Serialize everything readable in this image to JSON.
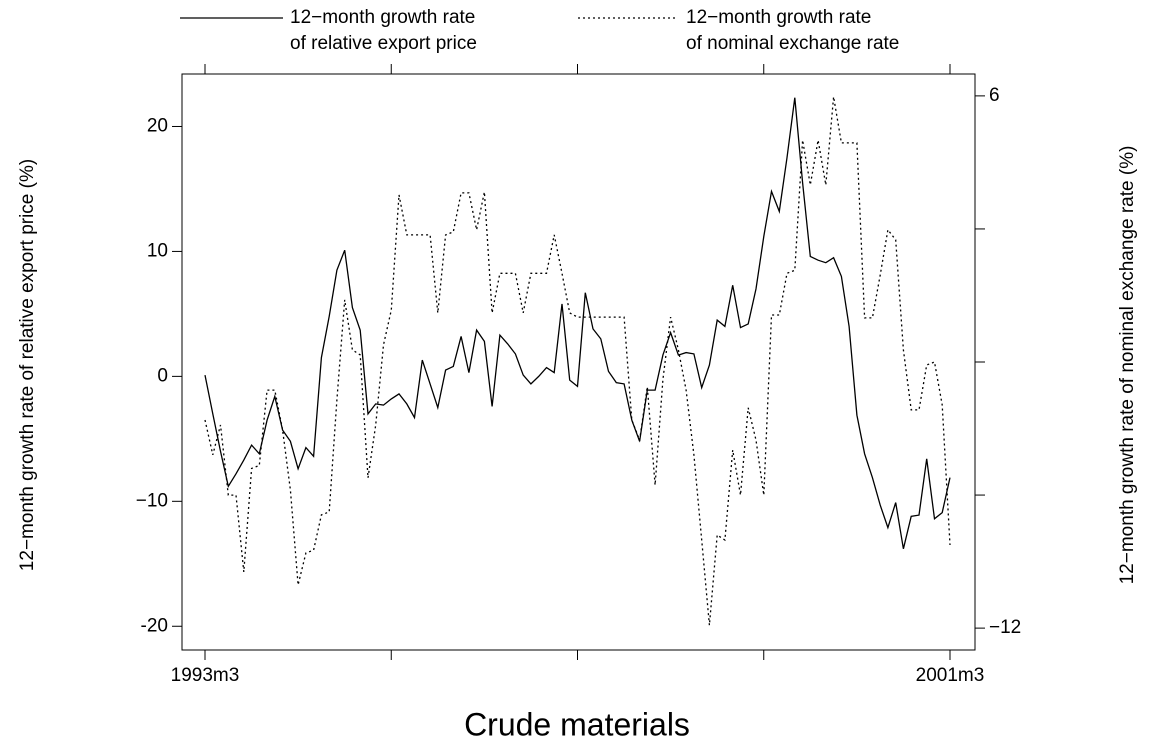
{
  "chart_data": {
    "type": "line",
    "title": "Crude materials",
    "y_label": "12−month growth rate of relative export price (%)",
    "y2_label": "12−month growth rate of nominal exchange rate (%)",
    "categories": [
      "1993m3",
      null,
      null,
      null,
      null,
      null,
      null,
      null,
      null,
      null,
      null,
      null,
      null,
      null,
      null,
      null,
      null,
      null,
      null,
      null,
      null,
      null,
      null,
      null,
      null,
      null,
      null,
      null,
      null,
      null,
      null,
      null,
      null,
      null,
      null,
      null,
      null,
      null,
      null,
      null,
      null,
      null,
      null,
      null,
      null,
      null,
      null,
      null,
      null,
      null,
      null,
      null,
      null,
      null,
      null,
      null,
      null,
      null,
      null,
      null,
      null,
      null,
      null,
      null,
      null,
      null,
      null,
      null,
      null,
      null,
      null,
      null,
      null,
      null,
      null,
      null,
      null,
      null,
      null,
      null,
      null,
      null,
      null,
      null,
      null,
      null,
      null,
      null,
      null,
      null,
      null,
      null,
      null,
      null,
      null,
      null,
      "2001m3"
    ],
    "ylim": [
      -21.9,
      24.2
    ],
    "yticks": [
      -20,
      {
        "value": -10,
        "label": "−10"
      },
      0,
      10,
      20
    ],
    "y2lim": [
      -12.74,
      6.74
    ],
    "y2ticks": [
      {
        "value": -12,
        "label": "−12"
      },
      {
        "value": -7.5,
        "label": null
      },
      {
        "value": -3,
        "label": null
      },
      {
        "value": 1.5,
        "label": null
      },
      6
    ],
    "series": [
      {
        "name": [
          "12−month growth rate",
          "of relative export price"
        ],
        "color": "#000000",
        "style": "solid",
        "values": [
          0.1,
          -3,
          -6,
          -8.8,
          -7.8,
          -6.7,
          -5.5,
          -6.2,
          -3.5,
          -1.6,
          -4.3,
          -5.2,
          -7.4,
          -5.7,
          -6.4,
          1.5,
          4.8,
          8.5,
          10.1,
          5.5,
          3.7,
          -3,
          -2.2,
          -2.3,
          -1.8,
          -1.4,
          -2.2,
          -3.3,
          1.3,
          -0.6,
          -2.5,
          0.5,
          0.8,
          3.2,
          0.3,
          3.7,
          2.8,
          -2.4,
          3.3,
          2.6,
          1.8,
          0.1,
          -0.6,
          0,
          0.7,
          0.3,
          5.8,
          -0.3,
          -0.8,
          6.7,
          3.8,
          3,
          0.4,
          -0.5,
          -0.6,
          -3.5,
          -5.2,
          -1.1,
          -1.1,
          1.7,
          3.5,
          1.7,
          1.9,
          1.8,
          -0.9,
          0.9,
          4.5,
          4,
          7.3,
          3.9,
          4.2,
          7,
          11.2,
          14.8,
          13.2,
          17.5,
          22.3,
          15.5,
          9.6,
          9.3,
          9.1,
          9.5,
          8,
          4,
          -3.1,
          -6.2,
          -8.1,
          -10.3,
          -12.1,
          -10.1,
          -13.8,
          -11.2,
          -11.1,
          -6.6,
          -11.4,
          -10.9,
          -8.1
        ]
      },
      {
        "name": [
          "12−month growth rate",
          "of nominal exchange rate"
        ],
        "color": "#000000",
        "style": "dotted",
        "axis": "y2",
        "values": [
          -4.96,
          -6.14,
          -5.13,
          -7.5,
          -7.5,
          -10.1,
          -6.6,
          -6.5,
          -3.95,
          -3.95,
          -5.3,
          -7.33,
          -10.54,
          -9.46,
          -9.36,
          -8.17,
          -8.07,
          -4.28,
          -0.9,
          -2.59,
          -2.76,
          -6.92,
          -5.13,
          -2.42,
          -1.24,
          2.65,
          1.3,
          1.3,
          1.3,
          1.3,
          -1.34,
          1.3,
          1.4,
          2.72,
          2.72,
          1.47,
          2.75,
          -1.34,
          0,
          0,
          0,
          -1.34,
          0,
          0,
          0,
          1.3,
          0,
          -1.34,
          -1.48,
          -1.48,
          -1.48,
          -1.48,
          -1.48,
          -1.48,
          -1.48,
          -4.96,
          -5.64,
          -3.84,
          -7.16,
          -3.6,
          -1.48,
          -2.59,
          -3.95,
          -6.14,
          -9.02,
          -11.9,
          -8.85,
          -9.02,
          -5.98,
          -7.5,
          -4.55,
          -5.64,
          -7.5,
          -1.41,
          -1.41,
          0,
          0.1,
          4.5,
          2.99,
          4.5,
          2.99,
          5.97,
          4.41,
          4.41,
          4.41,
          -1.51,
          -1.51,
          -0.06,
          1.47,
          1.13,
          -2.59,
          -4.62,
          -4.62,
          -3.1,
          -3,
          -4.45,
          -9.19
        ]
      }
    ]
  }
}
